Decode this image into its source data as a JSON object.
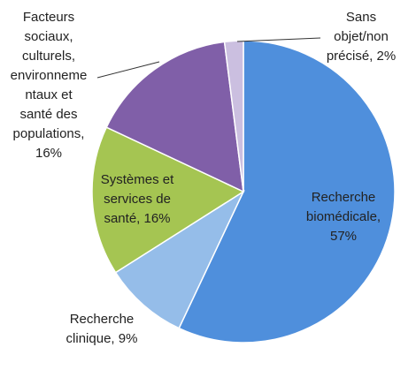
{
  "chart_data": {
    "type": "pie",
    "categories": [
      [
        "Recherche",
        "biomédicale,",
        "57%"
      ],
      [
        "Recherche",
        "clinique, 9%"
      ],
      [
        "Systèmes et",
        "services de",
        "santé, 16%"
      ],
      [
        "Facteurs",
        "sociaux,",
        "culturels,",
        "environneme",
        "ntaux et",
        "santé des",
        "populations,",
        "16%"
      ],
      [
        "Sans",
        "objet/non",
        "précisé, 2%"
      ]
    ],
    "values": [
      57,
      9,
      16,
      16,
      2
    ],
    "colors": [
      "#4f8fdc",
      "#95bde9",
      "#a5c552",
      "#805fa8",
      "#cbbfe0"
    ]
  }
}
